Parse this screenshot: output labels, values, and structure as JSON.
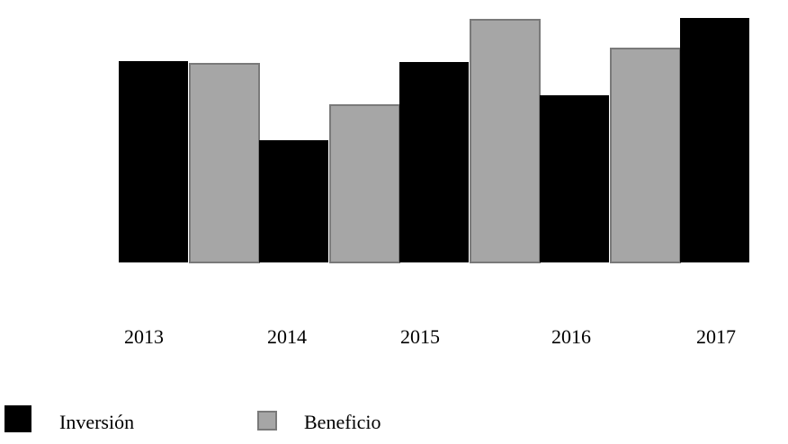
{
  "chart_data": {
    "type": "bar",
    "categories": [
      "2013",
      "2014",
      "2015",
      "2016",
      "2017"
    ],
    "series": [
      {
        "name": "Inversión",
        "values": [
          224,
          136,
          223,
          186,
          272
        ],
        "color": "#000000"
      },
      {
        "name": "Beneficio",
        "values": [
          221,
          175,
          270,
          238,
          null
        ],
        "color": "#a6a6a6"
      }
    ],
    "title": "",
    "xlabel": "",
    "ylabel": "",
    "grid": false,
    "legend_position": "bottom-left"
  },
  "colors": {
    "inversion": "#000000",
    "beneficio": "#a6a6a6",
    "beneficio_border": "#7a7a7a"
  }
}
